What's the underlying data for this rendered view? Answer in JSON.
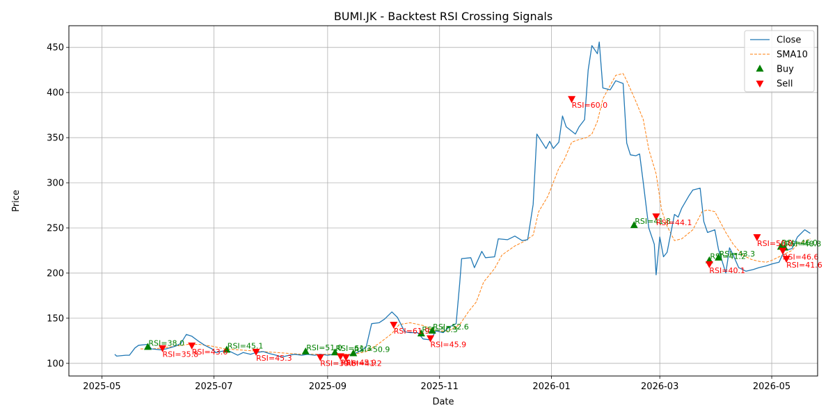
{
  "chart_data": {
    "type": "line",
    "title": "BUMI.JK - Backtest RSI Crossing Signals",
    "xlabel": "Date",
    "ylabel": "Price",
    "xlim": [
      "2025-04-13",
      "2026-05-26"
    ],
    "ylim": [
      86,
      474
    ],
    "x_ticks": [
      "2025-05",
      "2025-07",
      "2025-09",
      "2025-11",
      "2026-01",
      "2026-03",
      "2026-05"
    ],
    "y_ticks": [
      100,
      150,
      200,
      250,
      300,
      350,
      400,
      450
    ],
    "grid": true,
    "legend_position": "top-right",
    "legend": [
      "Close",
      "SMA10",
      "Buy",
      "Sell"
    ],
    "colors": {
      "close": "#1f77b4",
      "sma": "#ff7f0e",
      "buy": "#008000",
      "sell": "#ff0000",
      "grid": "#b0b0b0"
    },
    "series": [
      {
        "name": "Close",
        "style": "solid",
        "points": [
          [
            "2025-05-08",
            110
          ],
          [
            "2025-05-09",
            108
          ],
          [
            "2025-05-14",
            109
          ],
          [
            "2025-05-16",
            109
          ],
          [
            "2025-05-19",
            117
          ],
          [
            "2025-05-21",
            120
          ],
          [
            "2025-05-26",
            121
          ],
          [
            "2025-05-28",
            116
          ],
          [
            "2025-06-02",
            115
          ],
          [
            "2025-06-05",
            116
          ],
          [
            "2025-06-10",
            119
          ],
          [
            "2025-06-13",
            122
          ],
          [
            "2025-06-16",
            132
          ],
          [
            "2025-06-19",
            130
          ],
          [
            "2025-06-23",
            124
          ],
          [
            "2025-06-26",
            120
          ],
          [
            "2025-06-30",
            116
          ],
          [
            "2025-07-02",
            112
          ],
          [
            "2025-07-07",
            114
          ],
          [
            "2025-07-10",
            113
          ],
          [
            "2025-07-14",
            109
          ],
          [
            "2025-07-17",
            112
          ],
          [
            "2025-07-21",
            110
          ],
          [
            "2025-07-24",
            112
          ],
          [
            "2025-07-28",
            113
          ],
          [
            "2025-07-31",
            111
          ],
          [
            "2025-08-04",
            109
          ],
          [
            "2025-08-07",
            107
          ],
          [
            "2025-08-11",
            109
          ],
          [
            "2025-08-14",
            110
          ],
          [
            "2025-08-18",
            109
          ],
          [
            "2025-08-21",
            110
          ],
          [
            "2025-08-25",
            109
          ],
          [
            "2025-08-28",
            110
          ],
          [
            "2025-09-01",
            109
          ],
          [
            "2025-09-04",
            110
          ],
          [
            "2025-09-08",
            109
          ],
          [
            "2025-09-11",
            109
          ],
          [
            "2025-09-15",
            110
          ],
          [
            "2025-09-18",
            113
          ],
          [
            "2025-09-22",
            118
          ],
          [
            "2025-09-25",
            144
          ],
          [
            "2025-09-29",
            145
          ],
          [
            "2025-10-02",
            149
          ],
          [
            "2025-10-06",
            157
          ],
          [
            "2025-10-09",
            151
          ],
          [
            "2025-10-13",
            135
          ],
          [
            "2025-10-16",
            134
          ],
          [
            "2025-10-20",
            134
          ],
          [
            "2025-10-23",
            127
          ],
          [
            "2025-10-27",
            126
          ],
          [
            "2025-10-30",
            136
          ],
          [
            "2025-11-03",
            134
          ],
          [
            "2025-11-06",
            140
          ],
          [
            "2025-11-10",
            144
          ],
          [
            "2025-11-12",
            189
          ],
          [
            "2025-11-13",
            216
          ],
          [
            "2025-11-18",
            217
          ],
          [
            "2025-11-20",
            206
          ],
          [
            "2025-11-24",
            224
          ],
          [
            "2025-11-26",
            217
          ],
          [
            "2025-12-01",
            218
          ],
          [
            "2025-12-03",
            238
          ],
          [
            "2025-12-08",
            237
          ],
          [
            "2025-12-12",
            241
          ],
          [
            "2025-12-16",
            236
          ],
          [
            "2025-12-19",
            237
          ],
          [
            "2025-12-22",
            276
          ],
          [
            "2025-12-24",
            354
          ],
          [
            "2025-12-29",
            338
          ],
          [
            "2025-12-31",
            346
          ],
          [
            "2026-01-02",
            338
          ],
          [
            "2026-01-05",
            345
          ],
          [
            "2026-01-07",
            374
          ],
          [
            "2026-01-09",
            362
          ],
          [
            "2026-01-14",
            354
          ],
          [
            "2026-01-16",
            362
          ],
          [
            "2026-01-19",
            370
          ],
          [
            "2026-01-21",
            425
          ],
          [
            "2026-01-23",
            452
          ],
          [
            "2026-01-26",
            443
          ],
          [
            "2026-01-27",
            456
          ],
          [
            "2026-01-29",
            405
          ],
          [
            "2026-02-02",
            403
          ],
          [
            "2026-02-05",
            413
          ],
          [
            "2026-02-09",
            410
          ],
          [
            "2026-02-11",
            344
          ],
          [
            "2026-02-13",
            331
          ],
          [
            "2026-02-16",
            330
          ],
          [
            "2026-02-18",
            332
          ],
          [
            "2026-02-20",
            300
          ],
          [
            "2026-02-23",
            250
          ],
          [
            "2026-02-26",
            232
          ],
          [
            "2026-02-27",
            198
          ],
          [
            "2026-03-01",
            240
          ],
          [
            "2026-03-03",
            218
          ],
          [
            "2026-03-05",
            223
          ],
          [
            "2026-03-09",
            265
          ],
          [
            "2026-03-11",
            262
          ],
          [
            "2026-03-13",
            272
          ],
          [
            "2026-03-17",
            286
          ],
          [
            "2026-03-19",
            292
          ],
          [
            "2026-03-23",
            294
          ],
          [
            "2026-03-25",
            257
          ],
          [
            "2026-03-27",
            245
          ],
          [
            "2026-03-31",
            248
          ],
          [
            "2026-04-02",
            226
          ],
          [
            "2026-04-06",
            200
          ],
          [
            "2026-04-08",
            228
          ],
          [
            "2026-04-10",
            220
          ],
          [
            "2026-04-13",
            206
          ],
          [
            "2026-04-17",
            202
          ],
          [
            "2026-04-21",
            204
          ],
          [
            "2026-04-24",
            206
          ],
          [
            "2026-04-28",
            208
          ],
          [
            "2026-05-01",
            210
          ],
          [
            "2026-05-05",
            212
          ],
          [
            "2026-05-08",
            225
          ],
          [
            "2026-05-12",
            227
          ],
          [
            "2026-05-15",
            240
          ],
          [
            "2026-05-19",
            248
          ],
          [
            "2026-05-22",
            244
          ]
        ]
      },
      {
        "name": "SMA10",
        "style": "dashed",
        "points": [
          [
            "2025-05-22",
            116
          ],
          [
            "2025-05-28",
            116
          ],
          [
            "2025-06-03",
            117
          ],
          [
            "2025-06-10",
            119
          ],
          [
            "2025-06-17",
            121
          ],
          [
            "2025-06-23",
            121
          ],
          [
            "2025-06-30",
            119
          ],
          [
            "2025-07-07",
            116
          ],
          [
            "2025-07-14",
            115
          ],
          [
            "2025-07-21",
            114
          ],
          [
            "2025-07-28",
            113
          ],
          [
            "2025-08-04",
            112
          ],
          [
            "2025-08-11",
            111
          ],
          [
            "2025-08-18",
            110
          ],
          [
            "2025-08-25",
            110
          ],
          [
            "2025-09-01",
            110
          ],
          [
            "2025-09-08",
            110
          ],
          [
            "2025-09-15",
            110
          ],
          [
            "2025-09-22",
            113
          ],
          [
            "2025-09-29",
            122
          ],
          [
            "2025-10-06",
            133
          ],
          [
            "2025-10-10",
            143
          ],
          [
            "2025-10-16",
            145
          ],
          [
            "2025-10-23",
            142
          ],
          [
            "2025-10-30",
            136
          ],
          [
            "2025-11-06",
            136
          ],
          [
            "2025-11-12",
            143
          ],
          [
            "2025-11-17",
            158
          ],
          [
            "2025-11-21",
            168
          ],
          [
            "2025-11-25",
            190
          ],
          [
            "2025-12-01",
            205
          ],
          [
            "2025-12-05",
            220
          ],
          [
            "2025-12-12",
            230
          ],
          [
            "2025-12-17",
            235
          ],
          [
            "2025-12-22",
            242
          ],
          [
            "2025-12-25",
            268
          ],
          [
            "2025-12-30",
            285
          ],
          [
            "2026-01-05",
            316
          ],
          [
            "2026-01-08",
            326
          ],
          [
            "2026-01-12",
            345
          ],
          [
            "2026-01-16",
            348
          ],
          [
            "2026-01-20",
            350
          ],
          [
            "2026-01-23",
            354
          ],
          [
            "2026-01-26",
            368
          ],
          [
            "2026-01-29",
            393
          ],
          [
            "2026-02-02",
            408
          ],
          [
            "2026-02-05",
            419
          ],
          [
            "2026-02-09",
            421
          ],
          [
            "2026-02-11",
            413
          ],
          [
            "2026-02-16",
            390
          ],
          [
            "2026-02-20",
            370
          ],
          [
            "2026-02-23",
            337
          ],
          [
            "2026-02-27",
            310
          ],
          [
            "2026-03-02",
            270
          ],
          [
            "2026-03-05",
            252
          ],
          [
            "2026-03-09",
            236
          ],
          [
            "2026-03-13",
            238
          ],
          [
            "2026-03-19",
            248
          ],
          [
            "2026-03-24",
            268
          ],
          [
            "2026-03-27",
            270
          ],
          [
            "2026-03-31",
            268
          ],
          [
            "2026-04-06",
            245
          ],
          [
            "2026-04-10",
            232
          ],
          [
            "2026-04-15",
            220
          ],
          [
            "2026-04-20",
            215
          ],
          [
            "2026-04-24",
            213
          ],
          [
            "2026-04-28",
            212
          ],
          [
            "2026-05-01",
            214
          ],
          [
            "2026-05-05",
            218
          ],
          [
            "2026-05-08",
            221
          ],
          [
            "2026-05-12",
            225
          ],
          [
            "2026-05-15",
            232
          ],
          [
            "2026-05-22",
            238
          ]
        ]
      }
    ],
    "buy_signals": [
      {
        "x": "2025-05-26",
        "y": 118,
        "label": "RSI=38.0"
      },
      {
        "x": "2025-07-08",
        "y": 115,
        "label": "RSI=45.1"
      },
      {
        "x": "2025-08-20",
        "y": 113,
        "label": "RSI=51.0"
      },
      {
        "x": "2025-09-05",
        "y": 112,
        "label": "RSI=51.3"
      },
      {
        "x": "2025-09-15",
        "y": 111,
        "label": "RSI=50.9"
      },
      {
        "x": "2025-10-22",
        "y": 133,
        "label": "RSI=50.3"
      },
      {
        "x": "2025-10-28",
        "y": 136,
        "label": "RSI=52.6"
      },
      {
        "x": "2026-02-15",
        "y": 253,
        "label": "RSI=41.8"
      },
      {
        "x": "2026-03-28",
        "y": 214,
        "label": "RSI=41.2"
      },
      {
        "x": "2026-04-02",
        "y": 217,
        "label": "RSI=43.3"
      },
      {
        "x": "2026-05-06",
        "y": 229,
        "label": "RSI=46.0"
      },
      {
        "x": "2026-05-08",
        "y": 228,
        "label": "RSI=48.8"
      }
    ],
    "sell_signals": [
      {
        "x": "2025-06-03",
        "y": 117,
        "label": "RSI=35.8"
      },
      {
        "x": "2025-06-19",
        "y": 120,
        "label": "RSI=43.6"
      },
      {
        "x": "2025-07-24",
        "y": 113,
        "label": "RSI=45.3"
      },
      {
        "x": "2025-08-28",
        "y": 107,
        "label": "RSI=39.6"
      },
      {
        "x": "2025-09-08",
        "y": 108,
        "label": "RSI=45.9"
      },
      {
        "x": "2025-09-11",
        "y": 107,
        "label": "RSI=41.2"
      },
      {
        "x": "2025-10-07",
        "y": 143,
        "label": "RSI=61.9"
      },
      {
        "x": "2025-10-27",
        "y": 128,
        "label": "RSI=45.9"
      },
      {
        "x": "2026-01-12",
        "y": 393,
        "label": "RSI=60.0"
      },
      {
        "x": "2026-02-27",
        "y": 263,
        "label": "RSI=44.1"
      },
      {
        "x": "2026-03-28",
        "y": 210,
        "label": "RSI=40.1"
      },
      {
        "x": "2026-04-23",
        "y": 240,
        "label": "RSI=50.0"
      },
      {
        "x": "2026-05-07",
        "y": 225,
        "label": "RSI=46.6"
      },
      {
        "x": "2026-05-09",
        "y": 216,
        "label": "RSI=41.6"
      }
    ]
  }
}
